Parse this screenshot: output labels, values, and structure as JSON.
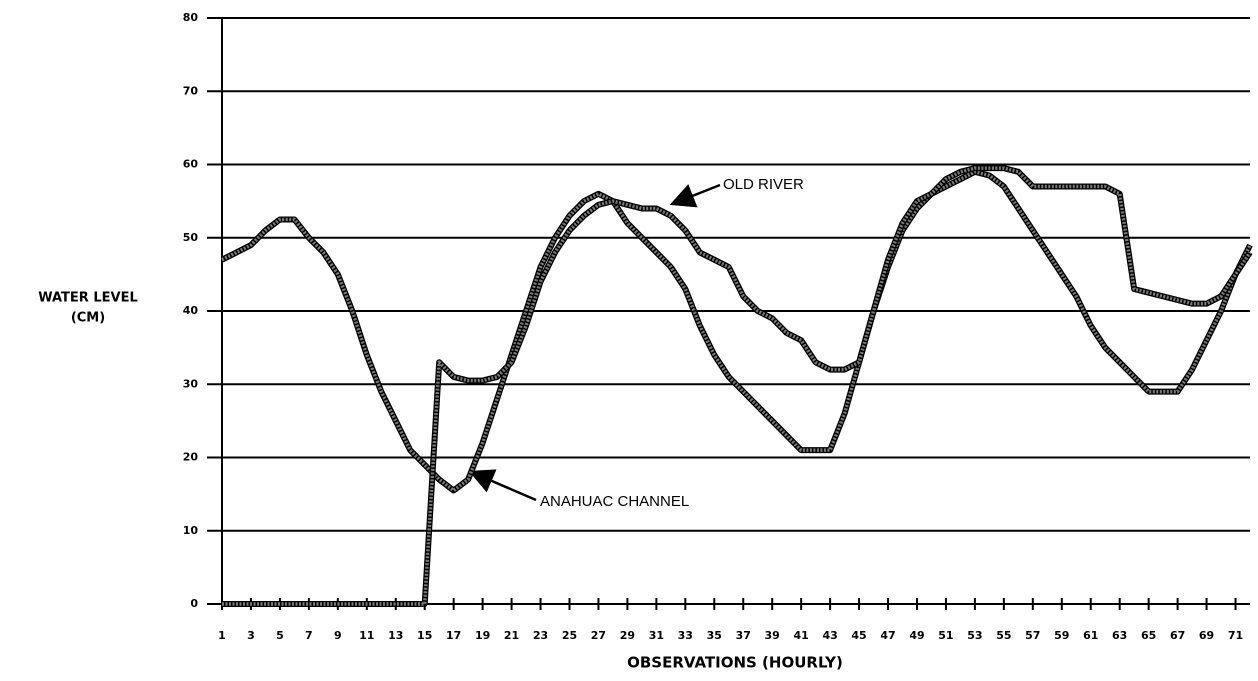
{
  "chart_data": {
    "type": "line",
    "ylabel": [
      "WATER LEVEL",
      "(CM)"
    ],
    "xlabel": "OBSERVATIONS  (HOURLY)",
    "annotations": [
      "OLD RIVER",
      "ANAHUAC CHANNEL"
    ],
    "x": [
      1,
      2,
      3,
      4,
      5,
      6,
      7,
      8,
      9,
      10,
      11,
      12,
      13,
      14,
      15,
      16,
      17,
      18,
      19,
      20,
      21,
      22,
      23,
      24,
      25,
      26,
      27,
      28,
      29,
      30,
      31,
      32,
      33,
      34,
      35,
      36,
      37,
      38,
      39,
      40,
      41,
      42,
      43,
      44,
      45,
      46,
      47,
      48,
      49,
      50,
      51,
      52,
      53,
      54,
      55,
      56,
      57,
      58,
      59,
      60,
      61,
      62,
      63,
      64,
      65,
      66,
      67,
      68,
      69,
      70,
      71,
      72
    ],
    "series": [
      {
        "name": "ANAHUAC CHANNEL",
        "color": "#7a7a7a",
        "values": [
          47,
          48,
          49,
          51,
          52.5,
          52.5,
          50,
          48,
          45,
          40,
          34,
          29,
          25,
          21,
          19,
          17,
          15.5,
          17,
          22,
          28,
          34,
          40,
          46,
          50,
          53,
          55,
          56,
          55,
          52,
          50,
          48,
          46,
          43,
          38,
          34,
          31,
          29,
          27,
          25,
          23,
          21,
          21,
          21,
          26,
          33,
          40,
          46,
          51,
          54,
          56,
          57,
          58,
          59,
          58.5,
          57,
          54,
          51,
          48,
          45,
          42,
          38,
          35,
          33,
          31,
          29,
          29,
          29,
          32,
          36,
          40,
          45,
          49
        ]
      },
      {
        "name": "OLD RIVER",
        "color": "#7a7a7a",
        "values": [
          0,
          0,
          0,
          0,
          0,
          0,
          0,
          0,
          0,
          0,
          0,
          0,
          0,
          0,
          0,
          33,
          31,
          30.5,
          30.5,
          31,
          33,
          38,
          44,
          48,
          51,
          53,
          54.5,
          55,
          54.5,
          54,
          54,
          53,
          51,
          48,
          47,
          46,
          42,
          40,
          39,
          37,
          36,
          33,
          32,
          32,
          33,
          40,
          47,
          52,
          55,
          56,
          58,
          59,
          59.5,
          59.5,
          59.5,
          59,
          57,
          57,
          57,
          57,
          57,
          57,
          56,
          43,
          42.5,
          42,
          41.5,
          41,
          41,
          42,
          45,
          48
        ]
      }
    ],
    "xlim": [
      1,
      72
    ],
    "ylim": [
      0,
      80
    ],
    "xticks": [
      1,
      3,
      5,
      7,
      9,
      11,
      13,
      15,
      17,
      19,
      21,
      23,
      25,
      27,
      29,
      31,
      33,
      35,
      37,
      39,
      41,
      43,
      45,
      47,
      49,
      51,
      53,
      55,
      57,
      59,
      61,
      63,
      65,
      67,
      69,
      71
    ],
    "yticks": [
      0,
      10,
      20,
      30,
      40,
      50,
      60,
      70,
      80
    ],
    "grid": true
  }
}
